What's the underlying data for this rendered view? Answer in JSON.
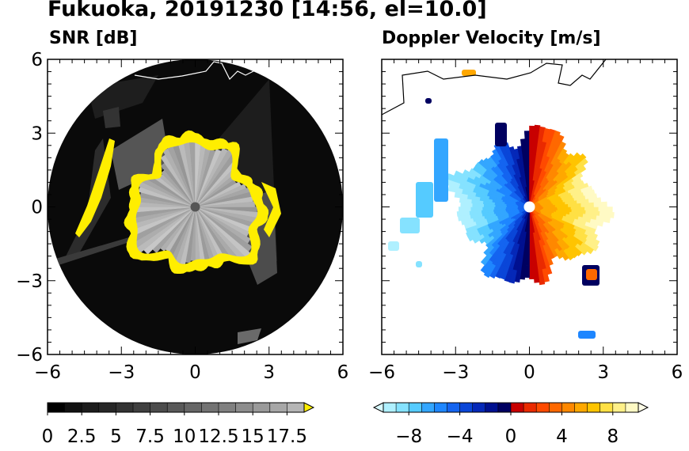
{
  "title": "Fukuoka, 20191230 [14:56, el=10.0]",
  "chart_data": [
    {
      "type": "heatmap",
      "title": "SNR [dB]",
      "x_range": [
        -6,
        6
      ],
      "y_range": [
        -6,
        6
      ],
      "x_ticks": [
        "−6",
        "−3",
        "0",
        "3",
        "6"
      ],
      "y_ticks": [
        "6",
        "3",
        "0",
        "−3",
        "−6"
      ],
      "colorbar": {
        "min": 0,
        "max": 18.75,
        "step": 1.25,
        "extend": "max",
        "tick_labels": [
          "0",
          "2.5",
          "5",
          "7.5",
          "10",
          "12.5",
          "15",
          "17.5"
        ],
        "colors": [
          "#000000",
          "#111111",
          "#1c1c1c",
          "#272727",
          "#333333",
          "#3f3f3f",
          "#4c4c4c",
          "#595959",
          "#666666",
          "#737373",
          "#808080",
          "#8d8d8d",
          "#9a9a9a",
          "#a7a7a7",
          "#b5b5b5"
        ],
        "extend_color": "#ffee00"
      },
      "radar_range": 6,
      "echo_ring_radius": 2.6
    },
    {
      "type": "heatmap",
      "title": "Doppler Velocity [m/s]",
      "x_range": [
        -6,
        6
      ],
      "y_range": [
        -6,
        6
      ],
      "x_ticks": [
        "−6",
        "−3",
        "0",
        "3",
        "6"
      ],
      "colorbar": {
        "min": -10,
        "max": 10,
        "step": 1,
        "extend": "both",
        "tick_labels": [
          "−8",
          "−4",
          "0",
          "4",
          "8"
        ],
        "colors": [
          "#aff0ff",
          "#85e2ff",
          "#55cbff",
          "#33a6ff",
          "#1e86ff",
          "#1464f0",
          "#0a46d8",
          "#0528b8",
          "#001090",
          "#000060",
          "#c80000",
          "#ea2a00",
          "#ff4a00",
          "#ff6800",
          "#ff8800",
          "#ffa800",
          "#ffc400",
          "#ffe044",
          "#fff088",
          "#fffac4"
        ],
        "extend_low_color": "#d8faff",
        "extend_high_color": "#fffde8"
      }
    }
  ]
}
